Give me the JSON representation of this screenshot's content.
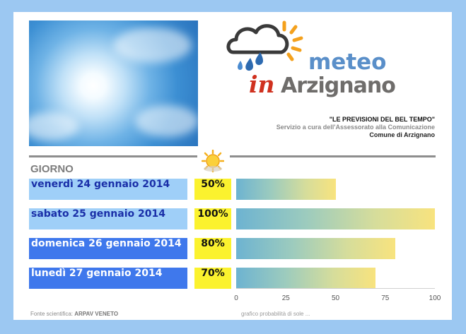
{
  "header": {
    "logo_line1": "meteo",
    "logo_in": "in",
    "logo_town": "Arzignano",
    "tagline": "\"LE PREVISIONI DEL BEL TEMPO\"",
    "service": "Servizio a cura dell'Assessorato alla Comunicazione",
    "comune": "Comune di Arzignano"
  },
  "table": {
    "day_header": "GIORNO",
    "icon": "sun-icon"
  },
  "colors": {
    "frame": "#9cc8f2",
    "light_row": "#9fcff8",
    "dark_row": "#3f78ec",
    "light_text": "#1a2fa8",
    "dark_text": "#ffffff",
    "percent_box": "#fbf22e"
  },
  "chart_data": {
    "type": "bar",
    "orientation": "horizontal",
    "categories": [
      "venerdì 24 gennaio 2014",
      "sabato 25 gennaio 2014",
      "domenica 26 gennaio 2014",
      "lunedì 27 gennaio 2014"
    ],
    "values": [
      50,
      100,
      80,
      70
    ],
    "value_labels": [
      "50%",
      "100%",
      "80%",
      "70%"
    ],
    "xlim": [
      0,
      100
    ],
    "xticks": [
      "0",
      "25",
      "50",
      "75",
      "100"
    ],
    "grid": false
  },
  "footer": {
    "source_label": "Fonte scientifica: ",
    "source_value": "ARPAV VENETO",
    "chart_caption": "grafico probabilità di sole ..."
  }
}
